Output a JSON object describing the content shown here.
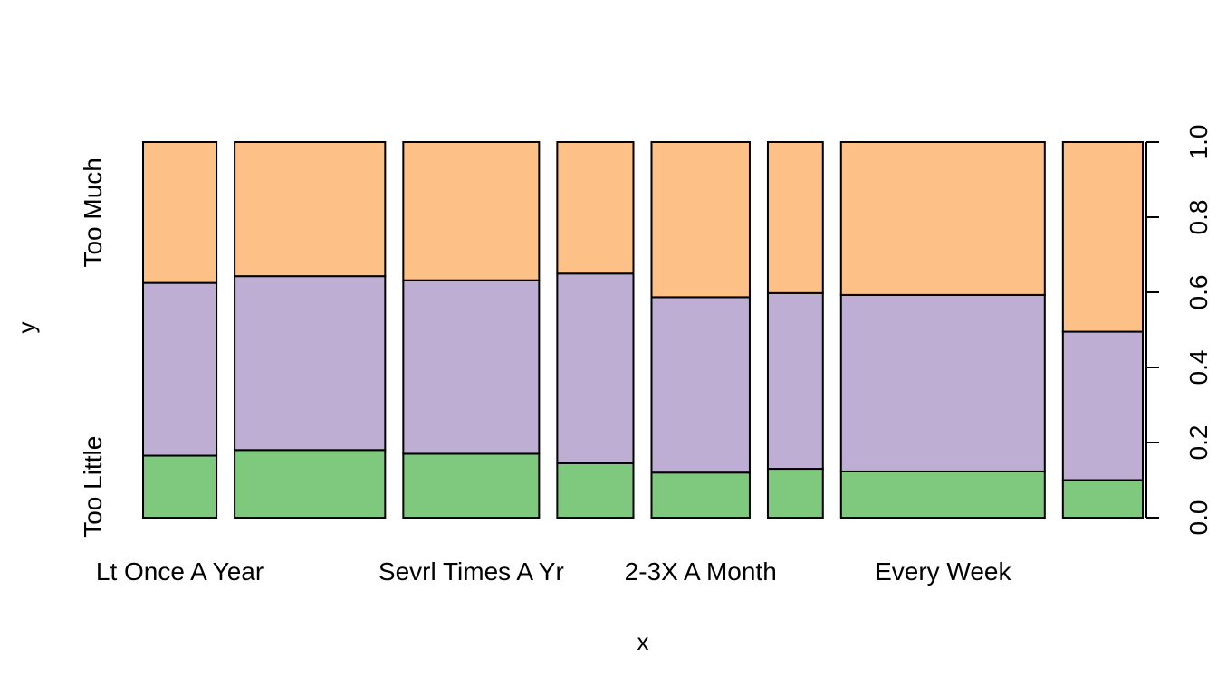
{
  "chart_data": {
    "type": "spineplot",
    "xlabel": "x",
    "ylabel": "y",
    "categories": [
      "Lt Once A Year",
      "",
      "Sevrl Times A Yr",
      "",
      "2-3X A Month",
      "",
      "Every Week",
      ""
    ],
    "x_tick_labels": [
      {
        "category": 0,
        "text": "Lt Once A Year"
      },
      {
        "category": 2,
        "text": "Sevrl Times A Yr"
      },
      {
        "category": 4,
        "text": "2-3X A Month"
      },
      {
        "category": 6,
        "text": "Every Week"
      }
    ],
    "relative_widths": [
      0.08,
      0.164,
      0.148,
      0.083,
      0.107,
      0.06,
      0.222,
      0.087
    ],
    "y_levels": [
      "Too Little",
      "",
      "Too Much"
    ],
    "y_level_labels": [
      {
        "level": 0,
        "text": "Too Little"
      },
      {
        "level": 2,
        "text": "Too Much"
      }
    ],
    "series": [
      {
        "level": 0,
        "color": "#7FC97F",
        "values": [
          0.165,
          0.18,
          0.17,
          0.145,
          0.12,
          0.13,
          0.123,
          0.1
        ]
      },
      {
        "level": 1,
        "color": "#BEAED4",
        "values": [
          0.46,
          0.463,
          0.462,
          0.505,
          0.467,
          0.468,
          0.47,
          0.395
        ]
      },
      {
        "level": 2,
        "color": "#FDC086",
        "values": [
          0.375,
          0.357,
          0.368,
          0.35,
          0.413,
          0.402,
          0.407,
          0.505
        ]
      }
    ],
    "right_axis": {
      "ticks": [
        "0.0",
        "0.2",
        "0.4",
        "0.6",
        "0.8",
        "1.0"
      ],
      "ylim": [
        0,
        1
      ]
    },
    "bar_outline": "#000000"
  }
}
